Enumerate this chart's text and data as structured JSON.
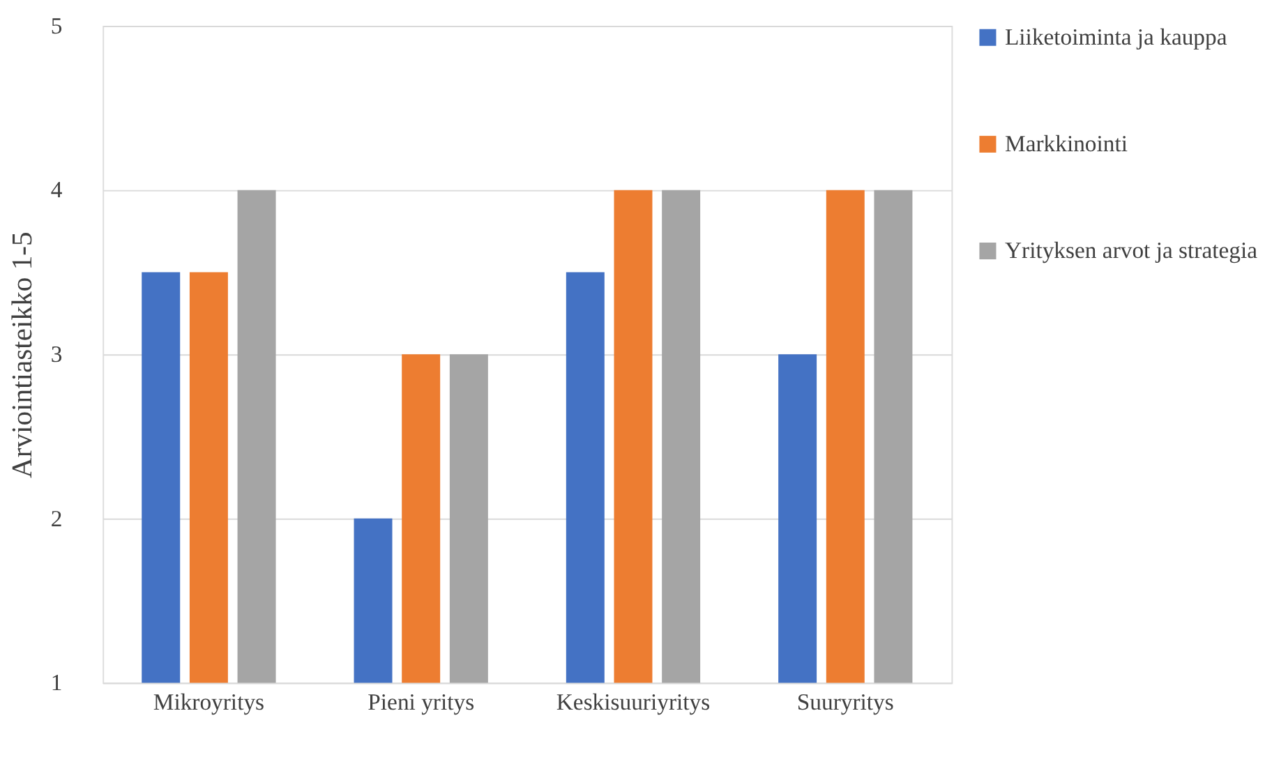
{
  "chart_data": {
    "type": "bar",
    "ylabel": "Arviointiasteikko 1-5",
    "categories": [
      "Mikroyritys",
      "Pieni yritys",
      "Keskisuuriyritys",
      "Suuryritys"
    ],
    "series": [
      {
        "name": "Liiketoiminta ja kauppa",
        "color": "#4472c4",
        "values": [
          3.5,
          2,
          3.5,
          3
        ]
      },
      {
        "name": "Markkinointi",
        "color": "#ed7d31",
        "values": [
          3.5,
          3,
          4,
          4
        ]
      },
      {
        "name": "Yrityksen arvot ja strategia",
        "color": "#a5a5a5",
        "values": [
          4,
          3,
          4,
          4
        ]
      }
    ],
    "ylim": [
      1,
      5
    ],
    "yticks": [
      1,
      2,
      3,
      4,
      5
    ],
    "grid": "y",
    "legend": "right"
  }
}
